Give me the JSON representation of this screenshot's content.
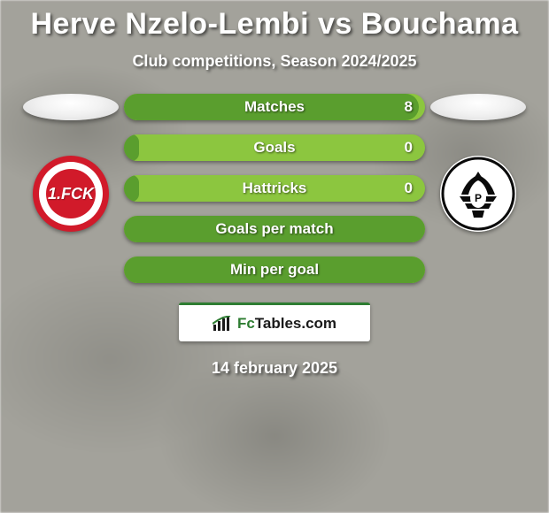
{
  "title": "Herve Nzelo-Lembi vs Bouchama",
  "subtitle": "Club competitions, Season 2024/2025",
  "date": "14 february 2025",
  "logo": {
    "brand_a": "Fc",
    "brand_b": "Tables",
    "suffix": ".com",
    "accent_color": "#2e7d32"
  },
  "colors": {
    "stat_bg": "#8cc63f",
    "stat_fill": "#5a9e2e",
    "text": "#ffffff",
    "background": "#a3a29b"
  },
  "left_crest": {
    "label": "1.FCK",
    "primary": "#d11a2a",
    "ring": "#ffffff"
  },
  "right_crest": {
    "bg": "#ffffff",
    "eagle": "#0a0a0a"
  },
  "stats": [
    {
      "label": "Matches",
      "value": "8",
      "fill_pct": 98
    },
    {
      "label": "Goals",
      "value": "0",
      "fill_pct": 5
    },
    {
      "label": "Hattricks",
      "value": "0",
      "fill_pct": 5
    },
    {
      "label": "Goals per match",
      "value": "",
      "fill_pct": 100
    },
    {
      "label": "Min per goal",
      "value": "",
      "fill_pct": 100
    }
  ]
}
